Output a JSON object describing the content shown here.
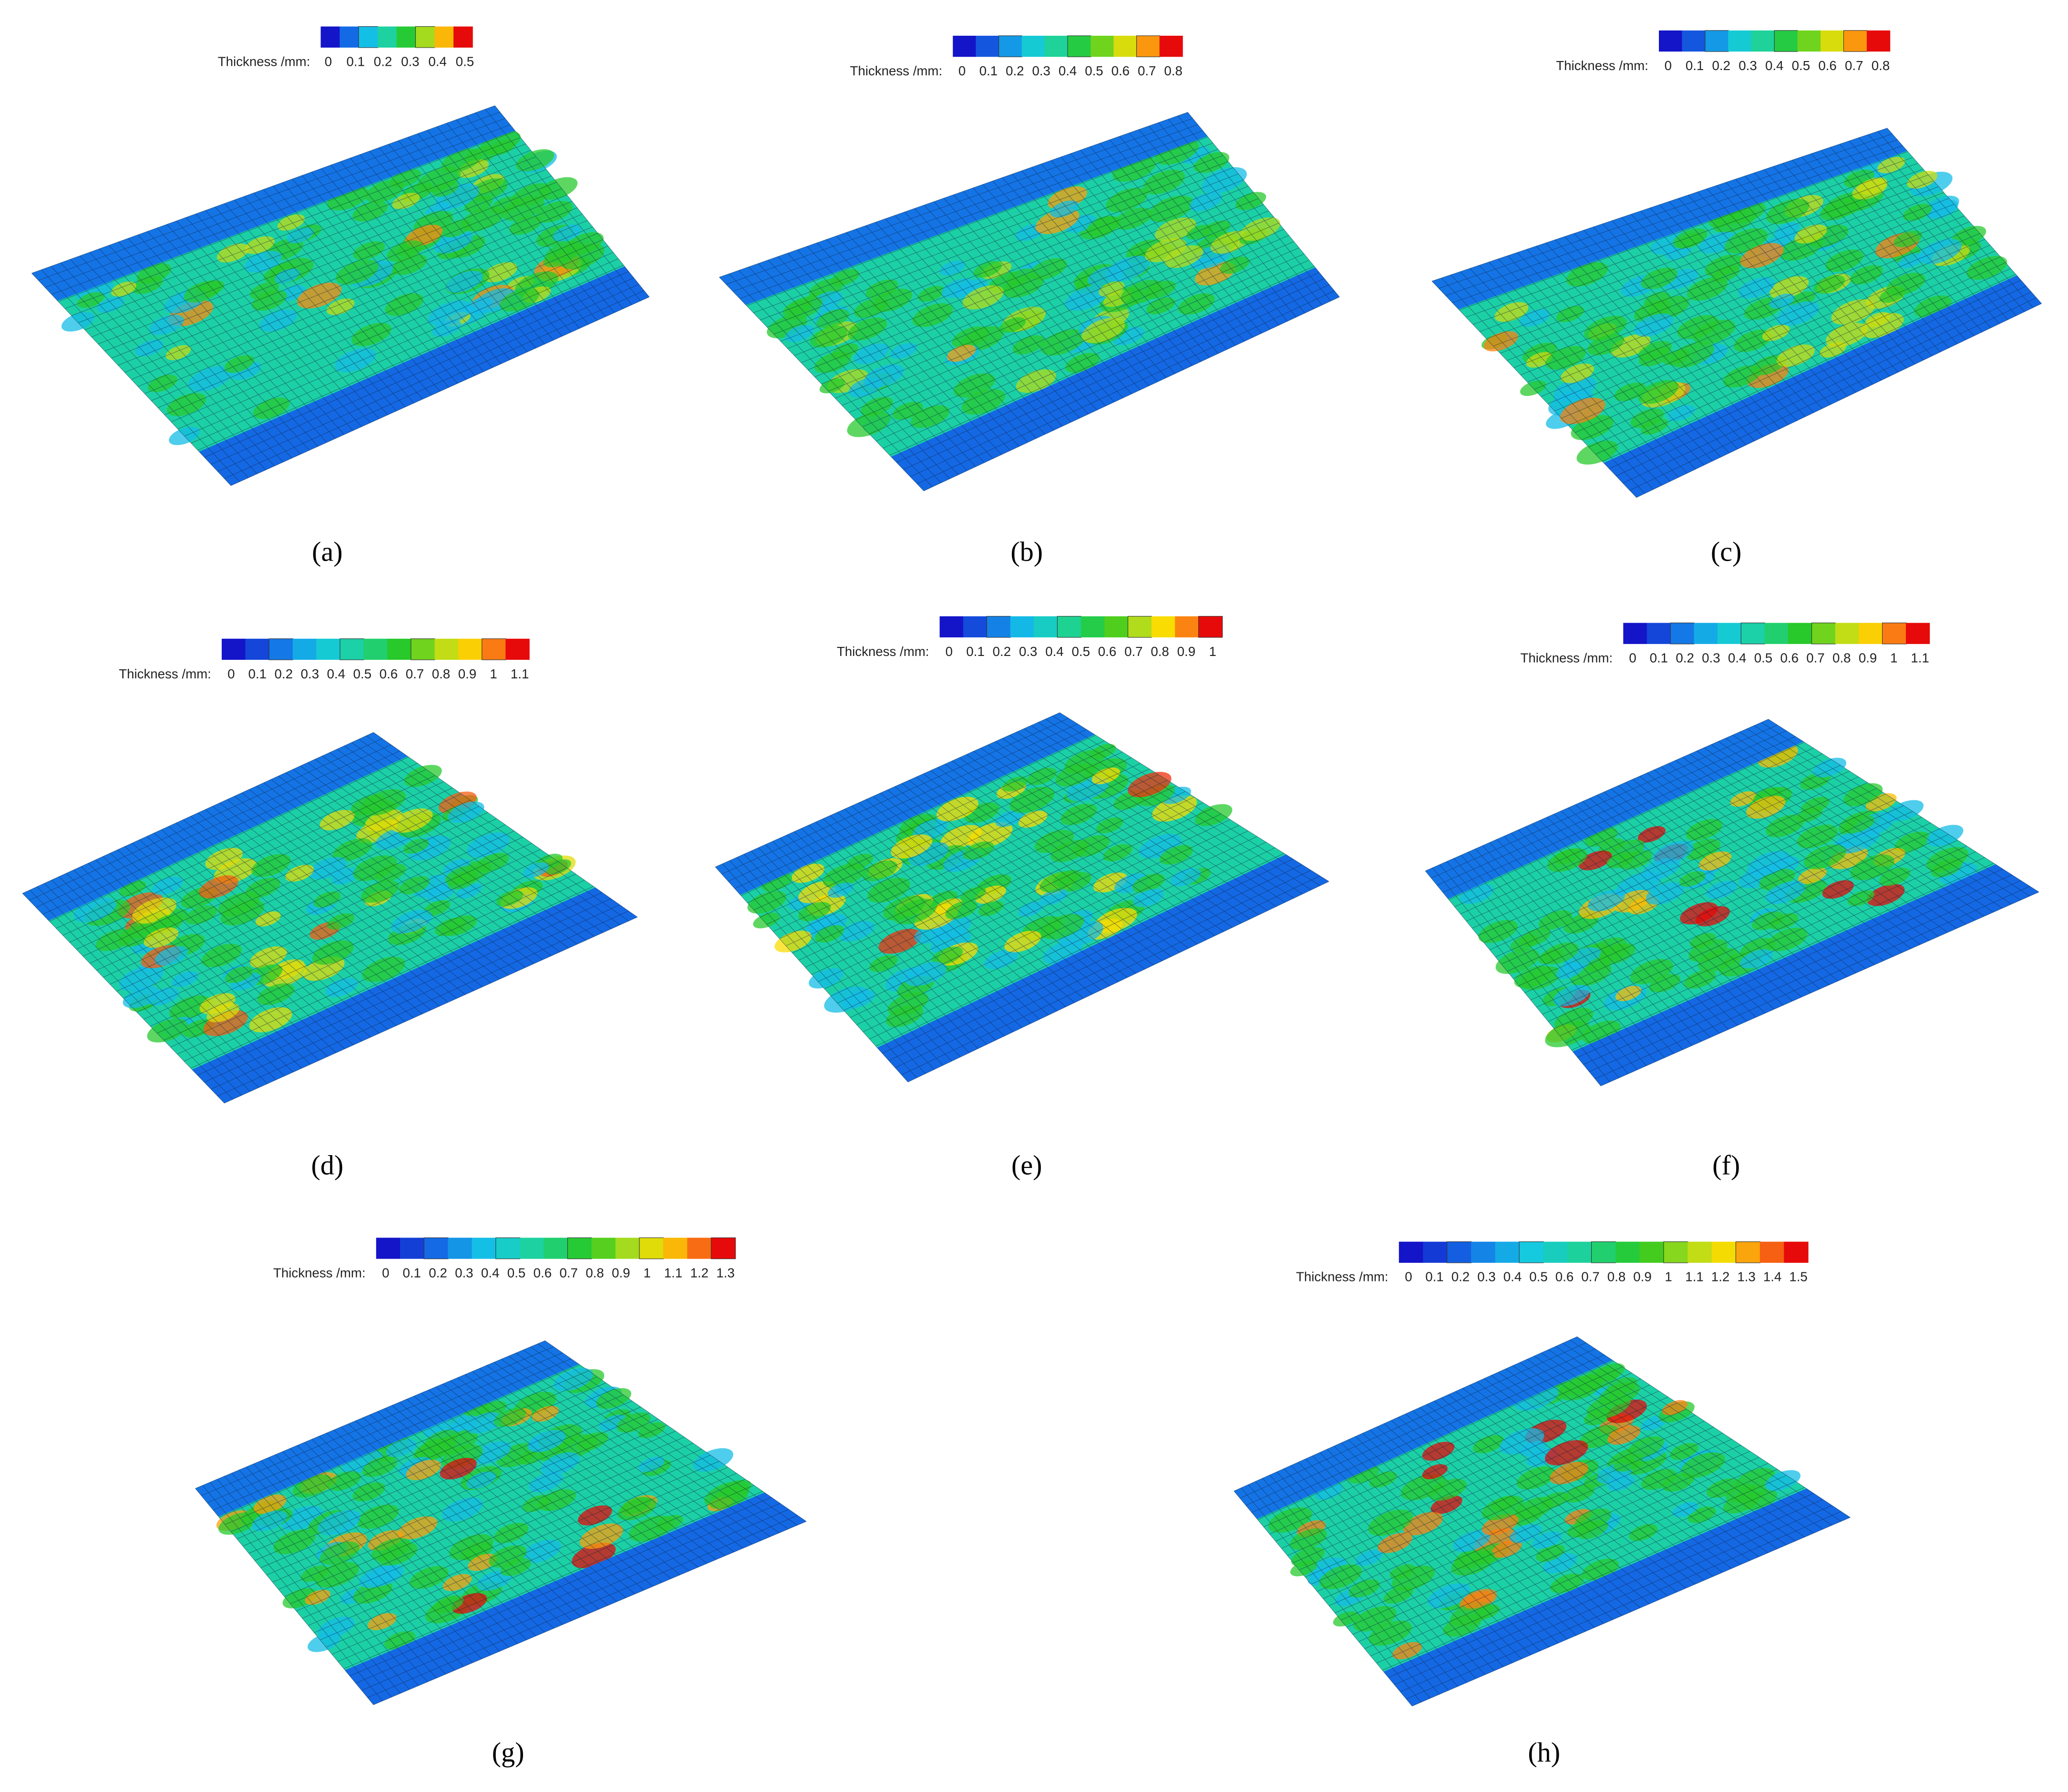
{
  "panels": [
    {
      "label": "(a)",
      "colorbar": {
        "title": "Thickness /mm:",
        "ticks": [
          0,
          0.1,
          0.2,
          0.3,
          0.4,
          0.5
        ]
      }
    },
    {
      "label": "(b)",
      "colorbar": {
        "title": "Thickness /mm:",
        "ticks": [
          0,
          0.1,
          0.2,
          0.3,
          0.4,
          0.5,
          0.6,
          0.7,
          0.8
        ]
      }
    },
    {
      "label": "(c)",
      "colorbar": {
        "title": "Thickness /mm:",
        "ticks": [
          0,
          0.1,
          0.2,
          0.3,
          0.4,
          0.5,
          0.6,
          0.7,
          0.8
        ]
      }
    },
    {
      "label": "(d)",
      "colorbar": {
        "title": "Thickness /mm:",
        "ticks": [
          0,
          0.1,
          0.2,
          0.3,
          0.4,
          0.5,
          0.6,
          0.7,
          0.8,
          0.9,
          1,
          1.1
        ]
      }
    },
    {
      "label": "(e)",
      "colorbar": {
        "title": "Thickness /mm:",
        "ticks": [
          0,
          0.1,
          0.2,
          0.3,
          0.4,
          0.5,
          0.6,
          0.7,
          0.8,
          0.9,
          1
        ]
      }
    },
    {
      "label": "(f)",
      "colorbar": {
        "title": "Thickness /mm:",
        "ticks": [
          0,
          0.1,
          0.2,
          0.3,
          0.4,
          0.5,
          0.6,
          0.7,
          0.8,
          0.9,
          1,
          1.1
        ]
      }
    },
    {
      "label": "(g)",
      "colorbar": {
        "title": "Thickness /mm:",
        "ticks": [
          0,
          0.1,
          0.2,
          0.3,
          0.4,
          0.5,
          0.6,
          0.7,
          0.8,
          0.9,
          1,
          1.1,
          1.2,
          1.3
        ]
      }
    },
    {
      "label": "(h)",
      "colorbar": {
        "title": "Thickness /mm:",
        "ticks": [
          0,
          0.1,
          0.2,
          0.3,
          0.4,
          0.5,
          0.6,
          0.7,
          0.8,
          0.9,
          1,
          1.1,
          1.2,
          1.3,
          1.4,
          1.5
        ]
      }
    }
  ]
}
